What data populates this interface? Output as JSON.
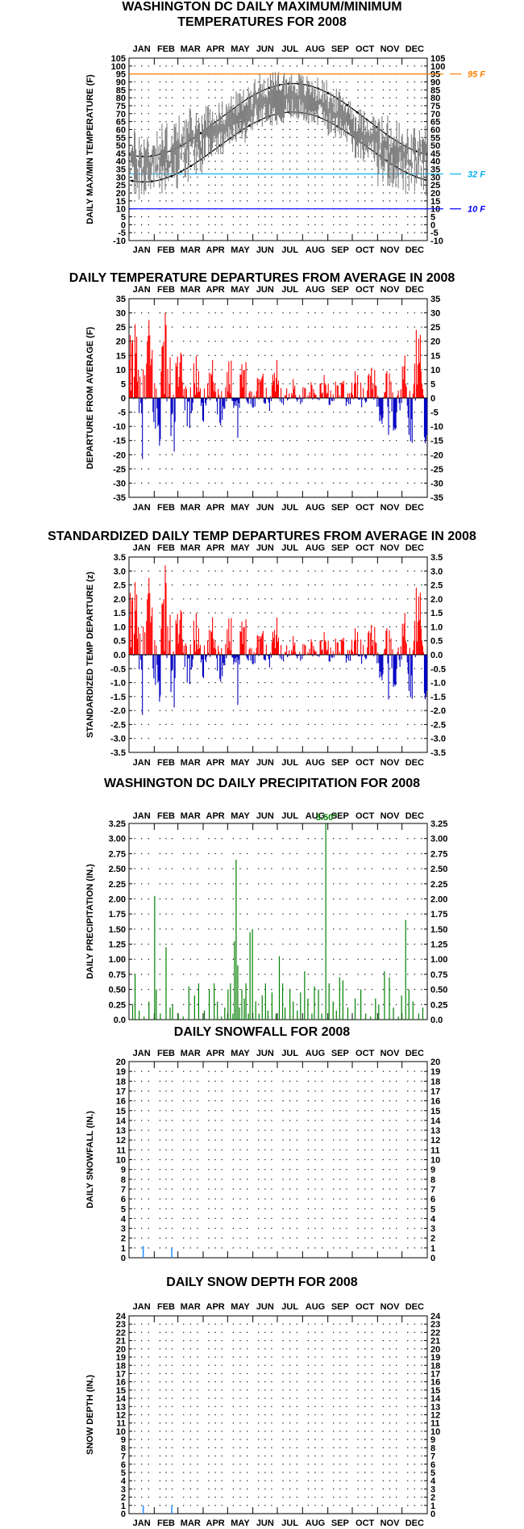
{
  "months": [
    "JAN",
    "FEB",
    "MAR",
    "APR",
    "MAY",
    "JUN",
    "JUL",
    "AUG",
    "SEP",
    "OCT",
    "NOV",
    "DEC"
  ],
  "colors": {
    "frame": "#000000",
    "max_temp": "#808080",
    "norm": "#000000",
    "ref_95": "#ff7f00",
    "ref_32": "#00b0f0",
    "ref_10": "#0000ff",
    "positive": "#ff0000",
    "negative": "#0000c0",
    "precip": "#008000",
    "snow": "#1e90ff"
  },
  "chart_data": [
    {
      "id": "temps",
      "type": "line",
      "title_lines": [
        "WASHINGTON DC DAILY MAXIMUM/MINIMUM",
        "TEMPERATURES FOR 2008"
      ],
      "ylabel": "DAILY MAX/MIN TEMPERATURE (F)",
      "ylim": [
        -10,
        105
      ],
      "yticks": [
        -10,
        -5,
        0,
        5,
        10,
        15,
        20,
        25,
        30,
        35,
        40,
        45,
        50,
        55,
        60,
        65,
        70,
        75,
        80,
        85,
        90,
        95,
        100,
        105
      ],
      "reference_lines": [
        {
          "value": 95,
          "label": "95 F",
          "color": "#ff7f00"
        },
        {
          "value": 32,
          "label": "32 F",
          "color": "#00b0f0"
        },
        {
          "value": 10,
          "label": "10 F",
          "color": "#0000ff"
        }
      ],
      "normal_max": {
        "jan": 43,
        "jul": 89
      },
      "normal_min": {
        "jan": 27,
        "jul": 71
      },
      "monthly_max_mean": [
        46,
        50,
        57,
        68,
        74,
        87,
        90,
        87,
        80,
        67,
        57,
        49
      ],
      "monthly_min_mean": [
        29,
        31,
        38,
        48,
        55,
        69,
        72,
        71,
        64,
        50,
        38,
        32
      ],
      "record_high": 99,
      "record_low": 13
    },
    {
      "id": "departures",
      "type": "bar",
      "title": "DAILY TEMPERATURE DEPARTURES FROM AVERAGE IN 2008",
      "ylabel": "DEPARTURE FROM AVERAGE (F)",
      "ylim": [
        -35,
        35
      ],
      "yticks": [
        -35,
        -30,
        -25,
        -20,
        -15,
        -10,
        -5,
        0,
        5,
        10,
        15,
        20,
        25,
        30,
        35
      ],
      "monthly_amplitude": [
        22,
        24,
        12,
        10,
        12,
        12,
        6,
        6,
        8,
        10,
        12,
        18
      ],
      "notable": [
        {
          "day": 7,
          "value": 26
        },
        {
          "day": 44,
          "value": 30
        },
        {
          "day": 133,
          "value": -14
        },
        {
          "day": 318,
          "value": -13
        },
        {
          "day": 352,
          "value": 24
        }
      ]
    },
    {
      "id": "standardized",
      "type": "bar",
      "title": "STANDARDIZED DAILY TEMP DEPARTURES FROM AVERAGE IN 2008",
      "ylabel": "STANDARDIZED TEMP DEPARTURE (z)",
      "ylim": [
        -3.5,
        3.5
      ],
      "yticks": [
        -3.5,
        -3.0,
        -2.5,
        -2.0,
        -1.5,
        -1.0,
        -0.5,
        0.0,
        0.5,
        1.0,
        1.5,
        2.0,
        2.5,
        3.0,
        3.5
      ],
      "notable": [
        {
          "day": 7,
          "value": 2.6
        },
        {
          "day": 44,
          "value": 3.2
        },
        {
          "day": 133,
          "value": -1.8
        },
        {
          "day": 318,
          "value": -1.6
        },
        {
          "day": 352,
          "value": 2.4
        }
      ]
    },
    {
      "id": "precip",
      "type": "bar",
      "title": "WASHINGTON DC DAILY PRECIPITATION FOR 2008",
      "ylabel": "DAILY PRECIPITATION (IN.)",
      "ylim": [
        0,
        3.25
      ],
      "yticks": [
        0.0,
        0.25,
        0.5,
        0.75,
        1.0,
        1.25,
        1.5,
        1.75,
        2.0,
        2.25,
        2.5,
        2.75,
        3.0,
        3.25
      ],
      "ytick_labels": [
        "0.0",
        "0.25",
        "0.50",
        "0.75",
        "1.00",
        "1.25",
        "1.50",
        "1.75",
        "2.00",
        "2.25",
        "2.50",
        "2.75",
        "3.00",
        "3.25"
      ],
      "overflow_label": "3.50\"",
      "events": [
        [
          4,
          0.25
        ],
        [
          7,
          0.75
        ],
        [
          12,
          0.15
        ],
        [
          18,
          0.05
        ],
        [
          24,
          0.3
        ],
        [
          31,
          2.05
        ],
        [
          33,
          0.5
        ],
        [
          38,
          0.1
        ],
        [
          45,
          1.2
        ],
        [
          50,
          0.2
        ],
        [
          53,
          0.25
        ],
        [
          60,
          0.1
        ],
        [
          66,
          0.05
        ],
        [
          73,
          0.55
        ],
        [
          80,
          0.4
        ],
        [
          85,
          0.6
        ],
        [
          92,
          0.15
        ],
        [
          98,
          0.5
        ],
        [
          104,
          0.6
        ],
        [
          108,
          0.3
        ],
        [
          113,
          0.05
        ],
        [
          117,
          0.2
        ],
        [
          121,
          0.5
        ],
        [
          124,
          0.6
        ],
        [
          127,
          0.1
        ],
        [
          129,
          1.3
        ],
        [
          131,
          2.65
        ],
        [
          133,
          0.9
        ],
        [
          135,
          0.2
        ],
        [
          138,
          0.5
        ],
        [
          141,
          0.35
        ],
        [
          143,
          0.6
        ],
        [
          146,
          0.1
        ],
        [
          148,
          1.45
        ],
        [
          151,
          1.5
        ],
        [
          155,
          0.3
        ],
        [
          159,
          0.1
        ],
        [
          163,
          0.4
        ],
        [
          167,
          0.6
        ],
        [
          170,
          0.15
        ],
        [
          175,
          0.45
        ],
        [
          180,
          0.1
        ],
        [
          184,
          1.05
        ],
        [
          188,
          0.6
        ],
        [
          191,
          0.2
        ],
        [
          197,
          0.5
        ],
        [
          201,
          0.3
        ],
        [
          206,
          0.15
        ],
        [
          210,
          0.45
        ],
        [
          215,
          0.8
        ],
        [
          219,
          0.35
        ],
        [
          224,
          0.1
        ],
        [
          227,
          0.55
        ],
        [
          232,
          0.5
        ],
        [
          236,
          0.1
        ],
        [
          241,
          3.5
        ],
        [
          245,
          0.6
        ],
        [
          250,
          0.3
        ],
        [
          254,
          0.15
        ],
        [
          258,
          0.7
        ],
        [
          262,
          0.65
        ],
        [
          268,
          0.2
        ],
        [
          277,
          0.35
        ],
        [
          284,
          0.5
        ],
        [
          290,
          0.1
        ],
        [
          296,
          0.05
        ],
        [
          302,
          0.35
        ],
        [
          306,
          0.25
        ],
        [
          313,
          0.8
        ],
        [
          319,
          0.7
        ],
        [
          324,
          0.2
        ],
        [
          330,
          0.05
        ],
        [
          334,
          0.4
        ],
        [
          339,
          1.65
        ],
        [
          343,
          0.5
        ],
        [
          348,
          0.3
        ],
        [
          355,
          0.1
        ],
        [
          360,
          0.2
        ]
      ]
    },
    {
      "id": "snowfall",
      "type": "bar",
      "title": "DAILY SNOWFALL FOR 2008",
      "ylabel": "DAILY SNOWFALL (IN.)",
      "ylim": [
        0,
        20
      ],
      "yticks": [
        0,
        1,
        2,
        3,
        4,
        5,
        6,
        7,
        8,
        9,
        10,
        11,
        12,
        13,
        14,
        15,
        16,
        17,
        18,
        19,
        20
      ],
      "events": [
        [
          17,
          1.2
        ],
        [
          52,
          1.0
        ]
      ]
    },
    {
      "id": "snowdepth",
      "type": "bar",
      "title": "DAILY SNOW DEPTH FOR 2008",
      "ylabel": "SNOW DEPTH (IN.)",
      "ylim": [
        0,
        24
      ],
      "yticks": [
        0,
        1,
        2,
        3,
        4,
        5,
        6,
        7,
        8,
        9,
        10,
        11,
        12,
        13,
        14,
        15,
        16,
        17,
        18,
        19,
        20,
        21,
        22,
        23,
        24
      ],
      "events": [
        [
          17,
          1.0
        ],
        [
          52,
          1.0
        ]
      ]
    }
  ]
}
